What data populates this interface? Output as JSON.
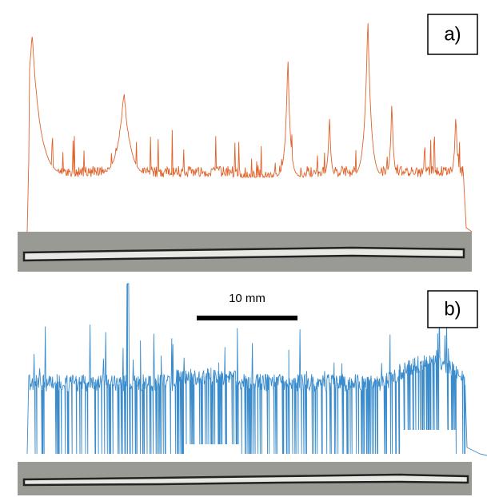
{
  "panels": [
    {
      "label": "a)"
    },
    {
      "label": "b)"
    }
  ],
  "scale_bar": {
    "label": "10 mm"
  }
}
